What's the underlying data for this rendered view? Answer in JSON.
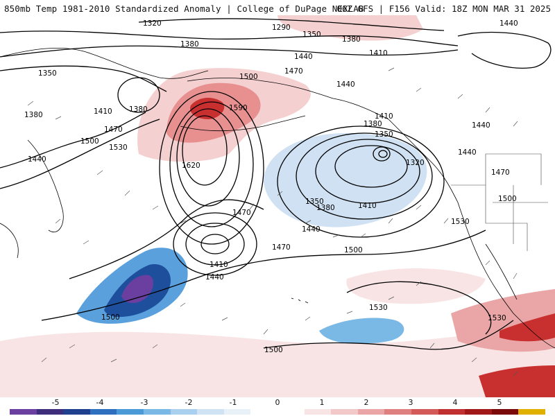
{
  "header": {
    "left_title": "850mb Temp 1981-2010 Standardized Anomaly | College of DuPage NEXLAB",
    "right_title": "06Z GFS | F156 Valid: 18Z MON MAR 31 2025"
  },
  "contour_labels": [
    {
      "id": "c1320a",
      "text": "1320"
    },
    {
      "id": "c1290",
      "text": "1290"
    },
    {
      "id": "c1350a",
      "text": "1350"
    },
    {
      "id": "c1380a",
      "text": "1380"
    },
    {
      "id": "c1380b",
      "text": "1380"
    },
    {
      "id": "c1440a",
      "text": "1440"
    },
    {
      "id": "c1350b",
      "text": "1350"
    },
    {
      "id": "c1440b",
      "text": "1440"
    },
    {
      "id": "c1410a",
      "text": "1410"
    },
    {
      "id": "c1500a",
      "text": "1500"
    },
    {
      "id": "c1470a",
      "text": "1470"
    },
    {
      "id": "c1440c",
      "text": "1440"
    },
    {
      "id": "c1590",
      "text": "1590"
    },
    {
      "id": "c1380c",
      "text": "1380"
    },
    {
      "id": "c1410b",
      "text": "1410"
    },
    {
      "id": "c1380d",
      "text": "1380"
    },
    {
      "id": "c1470b",
      "text": "1470"
    },
    {
      "id": "c1500b",
      "text": "1500"
    },
    {
      "id": "c1530a",
      "text": "1530"
    },
    {
      "id": "c1440d",
      "text": "1440"
    },
    {
      "id": "c1410c",
      "text": "1410"
    },
    {
      "id": "c1380e",
      "text": "1380"
    },
    {
      "id": "c1350c",
      "text": "1350"
    },
    {
      "id": "c1440e",
      "text": "1440"
    },
    {
      "id": "c1620",
      "text": "1620"
    },
    {
      "id": "c1320b",
      "text": "1320"
    },
    {
      "id": "c1440f",
      "text": "1440"
    },
    {
      "id": "c1470c",
      "text": "1470"
    },
    {
      "id": "c1350d",
      "text": "1350"
    },
    {
      "id": "c1380f",
      "text": "1380"
    },
    {
      "id": "c1410d",
      "text": "1410"
    },
    {
      "id": "c1500c",
      "text": "1500"
    },
    {
      "id": "c1470d",
      "text": "1470"
    },
    {
      "id": "c1440g",
      "text": "1440"
    },
    {
      "id": "c1530b",
      "text": "1530"
    },
    {
      "id": "c1470e",
      "text": "1470"
    },
    {
      "id": "c1410e",
      "text": "1410"
    },
    {
      "id": "c1500d",
      "text": "1500"
    },
    {
      "id": "c1440h",
      "text": "1440"
    },
    {
      "id": "c1530c",
      "text": "1530"
    },
    {
      "id": "c1500e",
      "text": "1500"
    },
    {
      "id": "c1530d",
      "text": "1530"
    },
    {
      "id": "c1500f",
      "text": "1500"
    }
  ],
  "colorbar": {
    "tick_labels": [
      "-5",
      "-4",
      "-3",
      "-2",
      "-1",
      "0",
      "1",
      "2",
      "3",
      "4",
      "5"
    ],
    "colors": [
      "#6a3fa0",
      "#3d2d7a",
      "#1f3f8f",
      "#2f6fc0",
      "#4a9ad8",
      "#7ab8e6",
      "#a9d0ef",
      "#cfe3f5",
      "#e8f0f8",
      "#ffffff",
      "#ffffff",
      "#f8e4e4",
      "#f2c8c8",
      "#eaa6a6",
      "#df8080",
      "#d45a5a",
      "#c03030",
      "#a01818",
      "#7a0a0a",
      "#e0b000"
    ]
  },
  "colors": {
    "warm_light": "#f5d0d0",
    "warm_mid": "#e89090",
    "warm_strong": "#c83030",
    "cold_light": "#cfe1f2",
    "cold_mid": "#5aa0dc",
    "cold_strong": "#1d4f9c",
    "cold_extreme": "#6a3fa0",
    "contour": "#000000",
    "coast": "#000000"
  }
}
